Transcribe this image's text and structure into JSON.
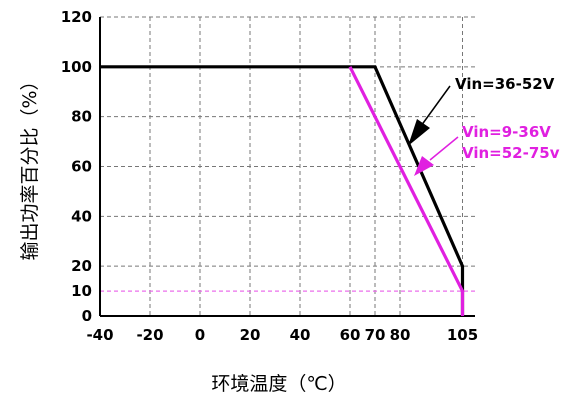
{
  "chart_data": {
    "type": "line",
    "xlabel": "环境温度（℃）",
    "ylabel": "输出功率百分比（%）",
    "xlim": [
      -40,
      110
    ],
    "ylim": [
      0,
      120
    ],
    "x_ticks": [
      -40,
      -20,
      0,
      20,
      40,
      60,
      70,
      80,
      105
    ],
    "y_ticks": [
      0,
      10,
      20,
      40,
      60,
      80,
      100,
      120
    ],
    "grid": true,
    "reference_line": {
      "y": 10,
      "color": "#ff66ff"
    },
    "series": [
      {
        "name": "Vin=36-52V",
        "color": "#000000",
        "x": [
          -40,
          70,
          105,
          105
        ],
        "y": [
          100,
          100,
          20,
          0
        ]
      },
      {
        "name": "Vin=9-36V\nVin=52-75v",
        "color": "#e020e0",
        "x": [
          60,
          105,
          105
        ],
        "y": [
          100,
          10,
          0
        ]
      }
    ],
    "annotations": [
      {
        "text": "Vin=36-52V",
        "color": "#000000"
      },
      {
        "text": "Vin=9-36V",
        "color": "#e020e0"
      },
      {
        "text": "Vin=52-75v",
        "color": "#e020e0"
      }
    ]
  }
}
